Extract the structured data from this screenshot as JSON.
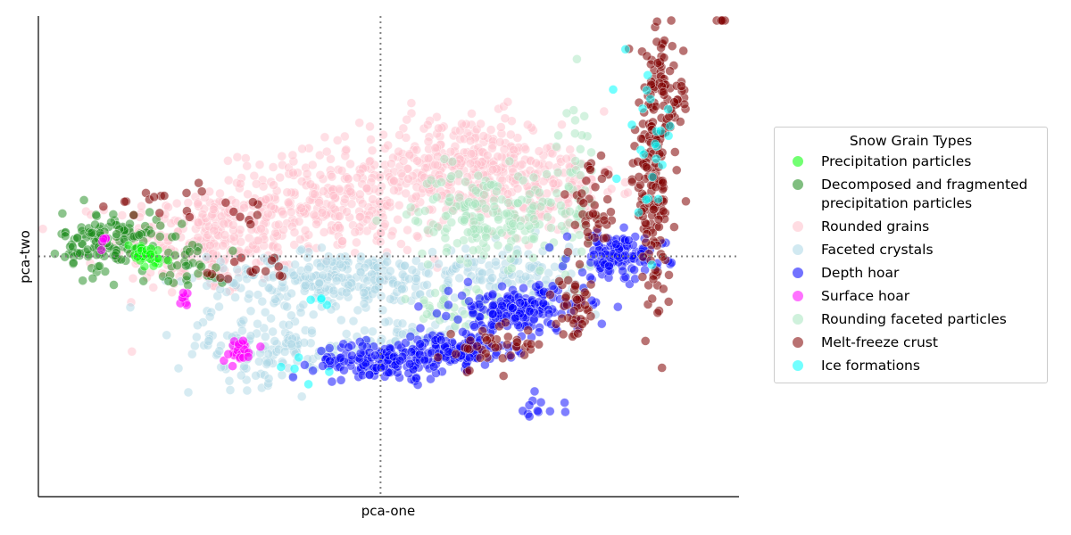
{
  "chart_data": {
    "type": "scatter",
    "xlabel": "pca-one",
    "ylabel": "pca-two",
    "xlim": [
      -4.2,
      4.4
    ],
    "ylim": [
      -3.2,
      3.2
    ],
    "reference_lines": {
      "x": 0,
      "y": 0,
      "style": "dotted",
      "color": "#808080"
    },
    "legend": {
      "title": "Snow Grain Types",
      "placement": "right"
    },
    "series": [
      {
        "name": "Rounded grains",
        "color": "#ffc0cb",
        "opacity": 0.5,
        "clusters": [
          {
            "cx": -2.2,
            "cy": 0.2,
            "sx": 0.55,
            "sy": 0.35,
            "n": 260
          },
          {
            "cx": -0.6,
            "cy": 0.7,
            "sx": 0.7,
            "sy": 0.35,
            "n": 320
          },
          {
            "cx": 1.0,
            "cy": 1.2,
            "sx": 0.6,
            "sy": 0.35,
            "n": 300
          },
          {
            "cx": 2.0,
            "cy": 0.9,
            "sx": 0.45,
            "sy": 0.3,
            "n": 140
          }
        ]
      },
      {
        "name": "Faceted crystals",
        "color": "#add8e6",
        "opacity": 0.5,
        "clusters": [
          {
            "cx": -0.5,
            "cy": -0.3,
            "sx": 0.8,
            "sy": 0.18,
            "n": 260
          },
          {
            "cx": -1.4,
            "cy": -1.2,
            "sx": 0.55,
            "sy": 0.25,
            "n": 150
          },
          {
            "cx": 1.6,
            "cy": -0.2,
            "sx": 0.5,
            "sy": 0.2,
            "n": 110
          },
          {
            "cx": 0.4,
            "cy": -1.1,
            "sx": 0.4,
            "sy": 0.15,
            "n": 60
          }
        ]
      },
      {
        "name": "Rounding faceted particles",
        "color": "#a8e6c0",
        "opacity": 0.5,
        "clusters": [
          {
            "cx": 1.3,
            "cy": 0.55,
            "sx": 0.45,
            "sy": 0.3,
            "n": 180
          },
          {
            "cx": 2.4,
            "cy": 0.9,
            "sx": 0.12,
            "sy": 0.6,
            "n": 50
          },
          {
            "cx": 0.9,
            "cy": -0.7,
            "sx": 0.3,
            "sy": 0.2,
            "n": 40
          }
        ]
      },
      {
        "name": "Decomposed and fragmented\nprecipitation particles",
        "color": "#1a8a1a",
        "opacity": 0.5,
        "clusters": [
          {
            "cx": -3.3,
            "cy": 0.2,
            "sx": 0.3,
            "sy": 0.2,
            "n": 140
          },
          {
            "cx": -2.3,
            "cy": -0.1,
            "sx": 0.2,
            "sy": 0.15,
            "n": 30
          }
        ]
      },
      {
        "name": "Precipitation particles",
        "color": "#00ff00",
        "opacity": 0.5,
        "clusters": [
          {
            "cx": -2.9,
            "cy": 0.0,
            "sx": 0.15,
            "sy": 0.08,
            "n": 35
          }
        ]
      },
      {
        "name": "Surface hoar",
        "color": "#ff00ff",
        "opacity": 0.6,
        "clusters": [
          {
            "cx": -1.75,
            "cy": -1.25,
            "sx": 0.1,
            "sy": 0.08,
            "n": 25
          },
          {
            "cx": -2.4,
            "cy": -0.6,
            "sx": 0.05,
            "sy": 0.1,
            "n": 8
          },
          {
            "cx": -3.4,
            "cy": 0.2,
            "sx": 0.05,
            "sy": 0.05,
            "n": 6
          }
        ]
      },
      {
        "name": "Depth hoar",
        "color": "#0000ff",
        "opacity": 0.5,
        "clusters": [
          {
            "cx": 0.0,
            "cy": -1.4,
            "sx": 0.4,
            "sy": 0.12,
            "n": 150
          },
          {
            "cx": 0.9,
            "cy": -1.25,
            "sx": 0.35,
            "sy": 0.12,
            "n": 130
          },
          {
            "cx": 1.7,
            "cy": -0.7,
            "sx": 0.4,
            "sy": 0.15,
            "n": 180
          },
          {
            "cx": 2.9,
            "cy": 0.0,
            "sx": 0.3,
            "sy": 0.15,
            "n": 120
          },
          {
            "cx": 1.9,
            "cy": -2.0,
            "sx": 0.15,
            "sy": 0.1,
            "n": 12
          }
        ]
      },
      {
        "name": "Melt-freeze crust",
        "color": "#800000",
        "opacity": 0.55,
        "clusters": [
          {
            "cx": 3.35,
            "cy": 1.0,
            "sx": 0.12,
            "sy": 0.8,
            "n": 160
          },
          {
            "cx": 3.5,
            "cy": 2.1,
            "sx": 0.15,
            "sy": 0.4,
            "n": 60
          },
          {
            "cx": 2.6,
            "cy": 0.6,
            "sx": 0.15,
            "sy": 0.3,
            "n": 40
          },
          {
            "cx": 2.4,
            "cy": -0.7,
            "sx": 0.12,
            "sy": 0.2,
            "n": 40
          },
          {
            "cx": 1.4,
            "cy": -1.2,
            "sx": 0.3,
            "sy": 0.15,
            "n": 40
          },
          {
            "cx": -1.6,
            "cy": -0.2,
            "sx": 0.3,
            "sy": 0.1,
            "n": 15
          },
          {
            "cx": -2.6,
            "cy": 0.7,
            "sx": 0.4,
            "sy": 0.15,
            "n": 15
          },
          {
            "cx": -1.6,
            "cy": 0.6,
            "sx": 0.12,
            "sy": 0.1,
            "n": 8
          },
          {
            "cx": 4.2,
            "cy": 3.5,
            "sx": 0.04,
            "sy": 0.2,
            "n": 5
          }
        ]
      },
      {
        "name": "Ice formations",
        "color": "#00ffff",
        "opacity": 0.55,
        "clusters": [
          {
            "cx": 3.3,
            "cy": 1.6,
            "sx": 0.15,
            "sy": 0.5,
            "n": 25
          },
          {
            "cx": -0.7,
            "cy": -0.6,
            "sx": 0.1,
            "sy": 0.05,
            "n": 4
          },
          {
            "cx": -1.0,
            "cy": -1.5,
            "sx": 0.3,
            "sy": 0.1,
            "n": 5
          }
        ]
      }
    ],
    "legend_order": [
      "Precipitation particles",
      "Decomposed and fragmented\nprecipitation particles",
      "Rounded grains",
      "Faceted crystals",
      "Depth hoar",
      "Surface hoar",
      "Rounding faceted particles",
      "Melt-freeze crust",
      "Ice formations"
    ]
  }
}
